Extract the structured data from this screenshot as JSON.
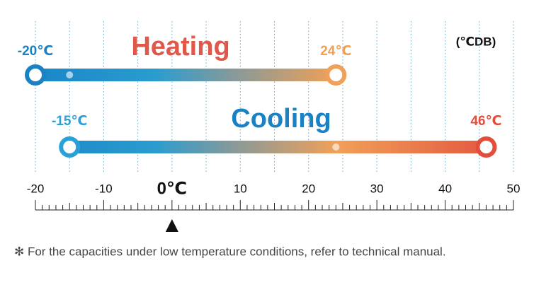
{
  "chart_data": {
    "type": "range",
    "unit": "(℃DB)",
    "series": [
      {
        "name": "Heating",
        "color": "#e0584a",
        "start_color": "#1a82c4",
        "end_color": "#f0a058",
        "values": [
          -20,
          24
        ],
        "value_labels": [
          "-20℃",
          "24℃"
        ]
      },
      {
        "name": "Cooling",
        "color": "#1a82c4",
        "start_color": "#2aa0d8",
        "end_color": "#e24e3c",
        "values": [
          -15,
          46
        ],
        "value_labels": [
          "-15℃",
          "46℃"
        ]
      }
    ],
    "xlim": [
      -20,
      50
    ],
    "xticks": [
      -20,
      -10,
      {
        "value": 0,
        "label": "0℃"
      },
      10,
      20,
      30,
      40,
      50
    ],
    "grid_xticks": [
      -20,
      -15,
      -10,
      -5,
      0,
      5,
      10,
      15,
      20,
      25,
      30,
      35,
      40,
      45,
      50
    ],
    "minor_xticks": [
      -20,
      -19,
      -18,
      -17,
      -16,
      -15,
      -14,
      -13,
      -12,
      -11,
      -10,
      -9,
      -8,
      -7,
      -6,
      -5,
      -4,
      -3,
      -2,
      -1,
      0,
      1,
      2,
      3,
      4,
      5,
      6,
      7,
      8,
      9,
      10,
      11,
      12,
      13,
      14,
      15,
      16,
      17,
      18,
      19,
      20,
      21,
      22,
      23,
      24,
      25,
      26,
      27,
      28,
      29,
      30,
      31,
      32,
      33,
      34,
      35,
      36,
      37,
      38,
      39,
      40,
      41,
      42,
      43,
      44,
      45,
      46,
      47,
      48,
      49,
      50
    ],
    "marker": 0,
    "note": "✻ For the capacities under low temperature conditions, refer to technical manual."
  }
}
